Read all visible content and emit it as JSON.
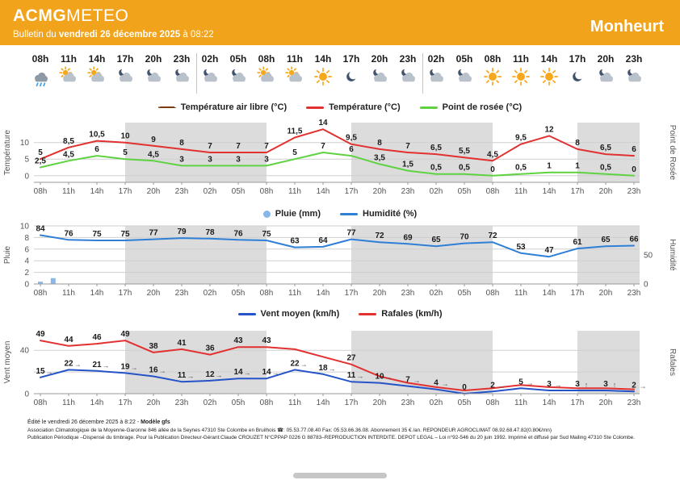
{
  "header": {
    "brand_bold": "ACMG",
    "brand_light": "METEO",
    "brand_color": "#f1a31b",
    "bulletin_prefix": "Bulletin du ",
    "bulletin_date": "vendredi 26 décembre 2025",
    "bulletin_suffix": " à 08:22",
    "station": "Monheurt"
  },
  "timeline": {
    "hours": [
      "08h",
      "11h",
      "14h",
      "17h",
      "20h",
      "23h",
      "02h",
      "05h",
      "08h",
      "11h",
      "14h",
      "17h",
      "20h",
      "23h",
      "02h",
      "05h",
      "08h",
      "11h",
      "14h",
      "17h",
      "20h",
      "23h"
    ],
    "icons": [
      "rain",
      "sun-cloud",
      "sun-cloud",
      "moon-cloud",
      "moon-cloud",
      "moon-cloud",
      "moon-cloud",
      "moon-cloud",
      "sun-cloud",
      "sun-cloud",
      "sun",
      "moon",
      "moon-cloud",
      "moon-cloud",
      "moon-cloud",
      "moon-cloud",
      "sun",
      "sun",
      "sun",
      "moon",
      "moon-cloud",
      "moon-cloud"
    ],
    "day_separators_after": [
      5,
      13
    ]
  },
  "night_spans": [
    [
      3,
      8
    ],
    [
      11,
      16
    ],
    [
      19,
      22
    ]
  ],
  "chart_data": [
    {
      "type": "line",
      "name": "temperature",
      "legend": [
        {
          "label": "Température air libre (°C)",
          "color": "#7a3b12",
          "marker": "dashed"
        },
        {
          "label": "Température (°C)",
          "color": "#e23131",
          "marker": "solid"
        },
        {
          "label": "Point de rosée (°C)",
          "color": "#5ed241",
          "marker": "solid"
        }
      ],
      "ylabel_left": "Température",
      "ylabel_right": "Point de Rosée",
      "ylim": [
        -2,
        16
      ],
      "yticks_left": [
        10,
        5,
        0
      ],
      "grid": [
        0,
        5,
        10
      ],
      "series": [
        {
          "name": "Température air libre (°C)",
          "color": "#7a3b12",
          "dashed": true,
          "width": 1.4,
          "values": [
            5,
            8.5,
            10.5,
            10,
            9,
            8,
            7,
            7,
            7,
            11.5,
            14,
            9.5,
            8,
            7,
            6.5,
            5.5,
            4.5,
            9.5,
            12,
            8,
            6.5,
            6
          ]
        },
        {
          "name": "Température (°C)",
          "color": "#e23131",
          "width": 2,
          "labels": true,
          "values": [
            5,
            8.5,
            10.5,
            10,
            9,
            8,
            7,
            7,
            7,
            11.5,
            14,
            9.5,
            8,
            7,
            6.5,
            5.5,
            4.5,
            9.5,
            12,
            8,
            6.5,
            6
          ]
        },
        {
          "name": "Point de rosée (°C)",
          "color": "#5ed241",
          "width": 2,
          "labels": true,
          "values": [
            2.5,
            4.5,
            6,
            5,
            4.5,
            3,
            3,
            3,
            3,
            5,
            7,
            6,
            3.5,
            1.5,
            0.5,
            0.5,
            0,
            0.5,
            1,
            1,
            0.5,
            0
          ]
        }
      ]
    },
    {
      "type": "bar+line",
      "name": "rain-humidity",
      "legend": [
        {
          "label": "Pluie (mm)",
          "color": "#85b6e8",
          "marker": "dot"
        },
        {
          "label": "Humidité (%)",
          "color": "#2f7fd6",
          "marker": "solid"
        }
      ],
      "ylabel_left": "Pluie",
      "ylabel_right": "Humidité",
      "ylim": [
        0,
        10
      ],
      "yticks_left": [
        10,
        8,
        6,
        4,
        2,
        0
      ],
      "grid": [
        0,
        2,
        4,
        6,
        8,
        10
      ],
      "ylim_right": [
        0,
        100
      ],
      "yticks_right": [
        50,
        0
      ],
      "bars": [
        {
          "pos": 0,
          "mm": 0.4
        },
        {
          "pos": 0.45,
          "mm": 1
        }
      ],
      "series": [
        {
          "name": "Humidité (%)",
          "color": "#2f7fd6",
          "width": 2,
          "labels": true,
          "scale": "right",
          "values": [
            84,
            76,
            75,
            75,
            77,
            79,
            78,
            76,
            75,
            63,
            64,
            77,
            72,
            69,
            65,
            70,
            72,
            53,
            47,
            61,
            65,
            66
          ]
        }
      ]
    },
    {
      "type": "line",
      "name": "wind",
      "legend": [
        {
          "label": "Vent moyen (km/h)",
          "color": "#2553c8",
          "marker": "solid"
        },
        {
          "label": "Rafales (km/h)",
          "color": "#e23131",
          "marker": "solid"
        }
      ],
      "ylabel_left": "Vent moyen",
      "ylabel_right": "Rafales",
      "ylim": [
        0,
        58
      ],
      "yticks_left": [
        40,
        0
      ],
      "grid": [
        0,
        20,
        40
      ],
      "series": [
        {
          "name": "Vent moyen (km/h)",
          "color": "#2553c8",
          "width": 2,
          "labels": true,
          "arrows": [
            "→",
            "→",
            "→",
            "→",
            "→",
            "→",
            "→",
            "→",
            "→",
            "→",
            "→",
            "→",
            "→",
            "→",
            "→",
            "",
            "→",
            "→",
            "→",
            "↑",
            "↑",
            "→"
          ],
          "values": [
            15,
            22,
            21,
            19,
            16,
            11,
            12,
            14,
            14,
            22,
            18,
            11,
            10,
            7,
            4,
            0,
            2,
            5,
            3,
            3,
            3,
            2
          ]
        },
        {
          "name": "Rafales (km/h)",
          "color": "#e23131",
          "width": 2,
          "labels": true,
          "label_mask": [
            1,
            1,
            1,
            1,
            1,
            1,
            1,
            1,
            1,
            0,
            0,
            1,
            0,
            0,
            0,
            0,
            0,
            0,
            0,
            0,
            0,
            0
          ],
          "values": [
            49,
            44,
            46,
            49,
            38,
            41,
            36,
            43,
            43,
            41,
            34,
            27,
            16,
            10,
            6,
            3,
            5,
            8,
            6,
            5,
            5,
            4
          ]
        }
      ]
    }
  ],
  "footer": {
    "line1_prefix": "Édité le vendredi 26 décembre 2025 à 8:22 - ",
    "line1_bold": "Modèle gfs",
    "line2": "Association Climatologique de la Moyenne-Garonne 846 allée de la Seynes 47310 Ste Colombe en Bruilhois ☎: 05.53.77.08.40 Fax: 05.53.66.36.08. Abonnement 35 € /an. REPONDEUR AGROCLIMAT 08.92.68.47.82(0.80€/mn)",
    "line3": "Publication Périodique –Dispensé du timbrage. Pour la Publication Directeur-Gérant:Claude CROUZET N°CPPAP 0226 G 88783–REPRODUCTION INTERDITE. DEPOT LEGAL – Loi n°92-546 du 20 juin 1992. Imprimé et diffusé par Sud Mailing 47310 Ste Colombe."
  }
}
